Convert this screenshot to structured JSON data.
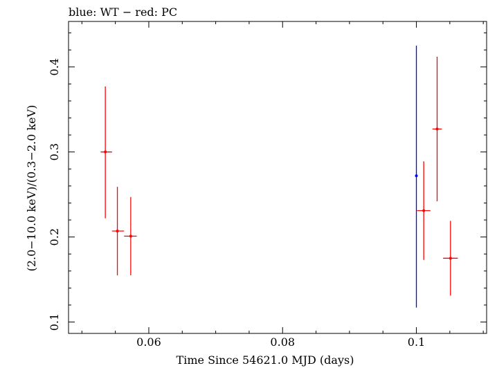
{
  "chart_data": {
    "type": "scatter",
    "title": "blue: WT − red: PC",
    "xlabel": "Time Since 54621.0 MJD (days)",
    "ylabel": "(2.0−10.0 keV)/(0.3−2.0 keV)",
    "xlim": [
      0.048,
      0.1105
    ],
    "ylim": [
      0.0866,
      0.4535
    ],
    "x_ticks": [
      {
        "value": 0.06,
        "label": "0.06"
      },
      {
        "value": 0.08,
        "label": "0.08"
      },
      {
        "value": 0.1,
        "label": "0.1"
      }
    ],
    "y_ticks": [
      {
        "value": 0.1,
        "label": "0.1"
      },
      {
        "value": 0.2,
        "label": "0.2"
      },
      {
        "value": 0.3,
        "label": "0.3"
      },
      {
        "value": 0.4,
        "label": "0.4"
      }
    ],
    "grid": false,
    "series": [
      {
        "mode": "WT",
        "color": "#0000ff",
        "points": [
          {
            "x": 0.1,
            "y": 0.272,
            "x_low": 0.1,
            "x_high": 0.1,
            "y_low": 0.117,
            "y_high": 0.425
          }
        ]
      },
      {
        "mode": "PC",
        "color": "#ff0000",
        "points": [
          {
            "x": 0.0535,
            "y": 0.3,
            "x_low": 0.0528,
            "x_high": 0.0545,
            "y_low": 0.222,
            "y_high": 0.377
          },
          {
            "x": 0.0553,
            "y": 0.207,
            "x_low": 0.0545,
            "x_high": 0.0563,
            "y_low": 0.155,
            "y_high": 0.259
          },
          {
            "x": 0.0573,
            "y": 0.201,
            "x_low": 0.0563,
            "x_high": 0.0582,
            "y_low": 0.155,
            "y_high": 0.247
          },
          {
            "x": 0.1011,
            "y": 0.231,
            "x_low": 0.1001,
            "x_high": 0.1021,
            "y_low": 0.173,
            "y_high": 0.289
          },
          {
            "x": 0.1031,
            "y": 0.327,
            "x_low": 0.1024,
            "x_high": 0.1038,
            "y_low": 0.242,
            "y_high": 0.412
          },
          {
            "x": 0.1051,
            "y": 0.175,
            "x_low": 0.104,
            "x_high": 0.1062,
            "y_low": 0.131,
            "y_high": 0.219
          }
        ]
      }
    ]
  }
}
